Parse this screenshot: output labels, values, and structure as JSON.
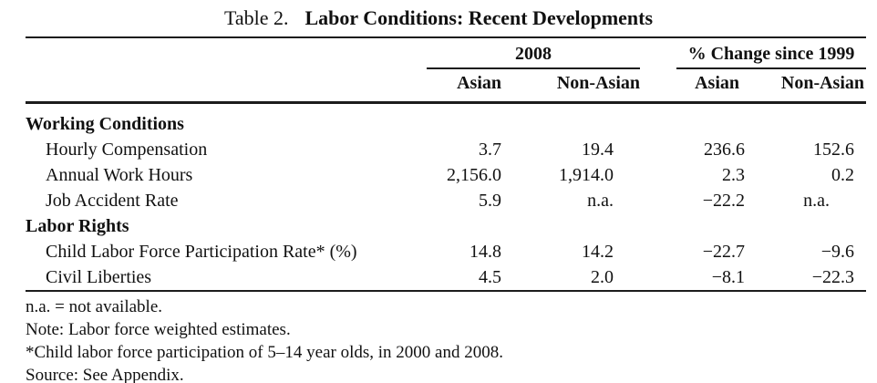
{
  "title": {
    "prefix": "Table 2.",
    "main": "Labor Conditions: Recent Developments"
  },
  "table": {
    "groups": [
      {
        "label": "2008"
      },
      {
        "label": "% Change since 1999"
      }
    ],
    "sub_headers": [
      "Asian",
      "Non-Asian",
      "Asian",
      "Non-Asian"
    ],
    "rows": [
      {
        "type": "section",
        "label": "Working Conditions"
      },
      {
        "type": "item",
        "label": "Hourly Compensation",
        "values": [
          "3.7",
          "19.4",
          "236.6",
          "152.6"
        ]
      },
      {
        "type": "item",
        "label": "Annual Work Hours",
        "values": [
          "2,156.0",
          "1,914.0",
          "2.3",
          "0.2"
        ]
      },
      {
        "type": "item",
        "label": "Job Accident Rate",
        "values": [
          "5.9",
          "n.a.",
          "−22.2",
          "n.a."
        ]
      },
      {
        "type": "section",
        "label": "Labor Rights"
      },
      {
        "type": "item",
        "label": "Child Labor Force Participation Rate* (%)",
        "values": [
          "14.8",
          "14.2",
          "−22.7",
          "−9.6"
        ]
      },
      {
        "type": "item",
        "label": "Civil Liberties",
        "values": [
          "4.5",
          "2.0",
          "−8.1",
          "−22.3"
        ]
      }
    ]
  },
  "notes": [
    "n.a. = not available.",
    "Note: Labor force weighted estimates.",
    "*Child labor force participation of 5–14 year olds, in 2000 and 2008.",
    "Source: See Appendix."
  ],
  "colors": {
    "background": "#ffffff",
    "text": "#111111",
    "rule": "#1c1c1c"
  }
}
